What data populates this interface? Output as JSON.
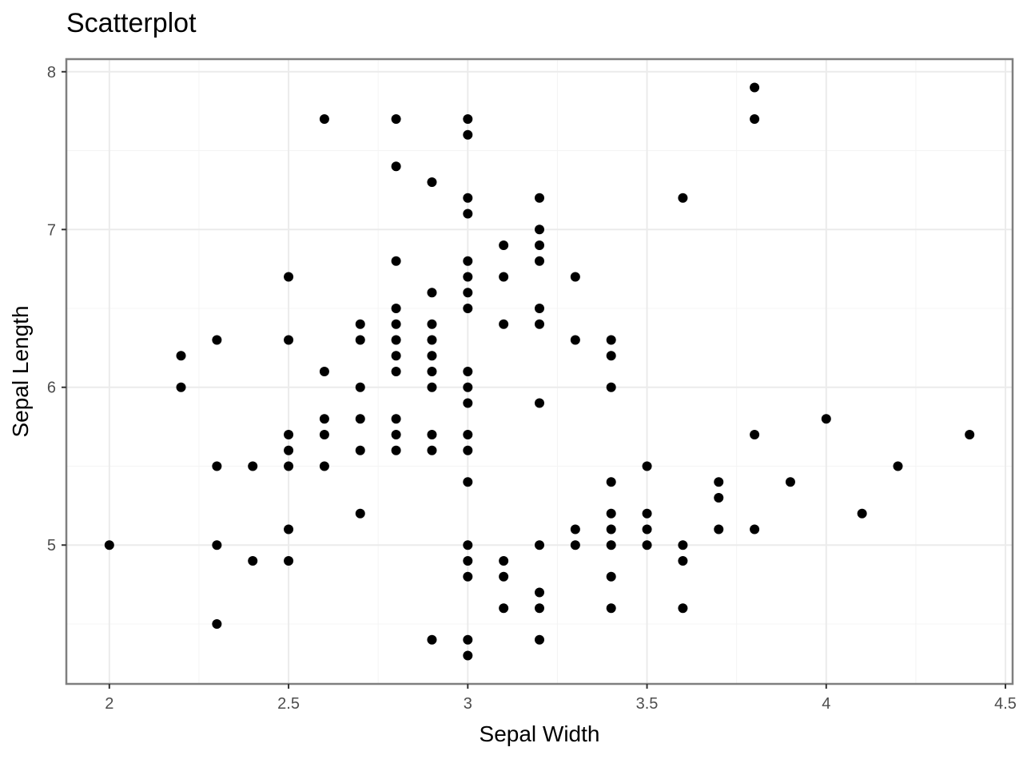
{
  "chart_data": {
    "type": "scatter",
    "title": "Scatterplot",
    "xlabel": "Sepal Width",
    "ylabel": "Sepal Length",
    "xlim": [
      1.88,
      4.52
    ],
    "ylim": [
      4.12,
      8.08
    ],
    "x_ticks": [
      2,
      2.5,
      3,
      3.5,
      4,
      4.5
    ],
    "x_tick_labels": [
      "2",
      "2.5",
      "3",
      "3.5",
      "4",
      "4.5"
    ],
    "y_ticks": [
      5,
      6,
      7,
      8
    ],
    "y_tick_labels": [
      "5",
      "6",
      "7",
      "8"
    ],
    "grid": true,
    "point_color": "#000000",
    "points": [
      [
        2.0,
        5.0
      ],
      [
        2.2,
        6.2
      ],
      [
        2.2,
        6.0
      ],
      [
        2.3,
        6.3
      ],
      [
        2.3,
        5.5
      ],
      [
        2.3,
        5.0
      ],
      [
        2.3,
        4.5
      ],
      [
        2.4,
        5.5
      ],
      [
        2.4,
        4.9
      ],
      [
        2.5,
        6.7
      ],
      [
        2.5,
        6.3
      ],
      [
        2.5,
        5.7
      ],
      [
        2.5,
        5.6
      ],
      [
        2.5,
        5.5
      ],
      [
        2.5,
        5.1
      ],
      [
        2.5,
        4.9
      ],
      [
        2.6,
        7.7
      ],
      [
        2.6,
        6.1
      ],
      [
        2.6,
        5.8
      ],
      [
        2.6,
        5.7
      ],
      [
        2.6,
        5.5
      ],
      [
        2.7,
        6.4
      ],
      [
        2.7,
        6.3
      ],
      [
        2.7,
        6.0
      ],
      [
        2.7,
        5.8
      ],
      [
        2.7,
        5.6
      ],
      [
        2.7,
        5.2
      ],
      [
        2.8,
        7.7
      ],
      [
        2.8,
        7.4
      ],
      [
        2.8,
        6.8
      ],
      [
        2.8,
        6.5
      ],
      [
        2.8,
        6.4
      ],
      [
        2.8,
        6.3
      ],
      [
        2.8,
        6.2
      ],
      [
        2.8,
        6.1
      ],
      [
        2.8,
        5.8
      ],
      [
        2.8,
        5.7
      ],
      [
        2.8,
        5.6
      ],
      [
        2.9,
        7.3
      ],
      [
        2.9,
        6.6
      ],
      [
        2.9,
        6.4
      ],
      [
        2.9,
        6.3
      ],
      [
        2.9,
        6.2
      ],
      [
        2.9,
        6.1
      ],
      [
        2.9,
        6.0
      ],
      [
        2.9,
        5.7
      ],
      [
        2.9,
        5.6
      ],
      [
        2.9,
        4.4
      ],
      [
        3.0,
        7.7
      ],
      [
        3.0,
        7.6
      ],
      [
        3.0,
        7.2
      ],
      [
        3.0,
        7.1
      ],
      [
        3.0,
        6.8
      ],
      [
        3.0,
        6.7
      ],
      [
        3.0,
        6.6
      ],
      [
        3.0,
        6.5
      ],
      [
        3.0,
        6.1
      ],
      [
        3.0,
        6.0
      ],
      [
        3.0,
        5.9
      ],
      [
        3.0,
        5.7
      ],
      [
        3.0,
        5.6
      ],
      [
        3.0,
        5.4
      ],
      [
        3.0,
        5.0
      ],
      [
        3.0,
        4.9
      ],
      [
        3.0,
        4.8
      ],
      [
        3.0,
        4.4
      ],
      [
        3.0,
        4.3
      ],
      [
        3.1,
        6.9
      ],
      [
        3.1,
        6.7
      ],
      [
        3.1,
        6.4
      ],
      [
        3.1,
        4.9
      ],
      [
        3.1,
        4.8
      ],
      [
        3.1,
        4.6
      ],
      [
        3.2,
        7.2
      ],
      [
        3.2,
        7.0
      ],
      [
        3.2,
        6.9
      ],
      [
        3.2,
        6.8
      ],
      [
        3.2,
        6.5
      ],
      [
        3.2,
        6.4
      ],
      [
        3.2,
        5.9
      ],
      [
        3.2,
        5.0
      ],
      [
        3.2,
        4.7
      ],
      [
        3.2,
        4.6
      ],
      [
        3.2,
        4.4
      ],
      [
        3.3,
        6.7
      ],
      [
        3.3,
        6.3
      ],
      [
        3.3,
        5.1
      ],
      [
        3.3,
        5.0
      ],
      [
        3.4,
        6.3
      ],
      [
        3.4,
        6.2
      ],
      [
        3.4,
        6.0
      ],
      [
        3.4,
        5.4
      ],
      [
        3.4,
        5.2
      ],
      [
        3.4,
        5.1
      ],
      [
        3.4,
        5.0
      ],
      [
        3.4,
        4.8
      ],
      [
        3.4,
        4.6
      ],
      [
        3.5,
        5.5
      ],
      [
        3.5,
        5.2
      ],
      [
        3.5,
        5.1
      ],
      [
        3.5,
        5.0
      ],
      [
        3.6,
        7.2
      ],
      [
        3.6,
        5.0
      ],
      [
        3.6,
        4.9
      ],
      [
        3.6,
        4.6
      ],
      [
        3.7,
        5.4
      ],
      [
        3.7,
        5.3
      ],
      [
        3.7,
        5.1
      ],
      [
        3.8,
        7.9
      ],
      [
        3.8,
        7.7
      ],
      [
        3.8,
        5.7
      ],
      [
        3.8,
        5.1
      ],
      [
        3.9,
        5.4
      ],
      [
        4.0,
        5.8
      ],
      [
        4.1,
        5.2
      ],
      [
        4.2,
        5.5
      ],
      [
        4.4,
        5.7
      ]
    ]
  }
}
